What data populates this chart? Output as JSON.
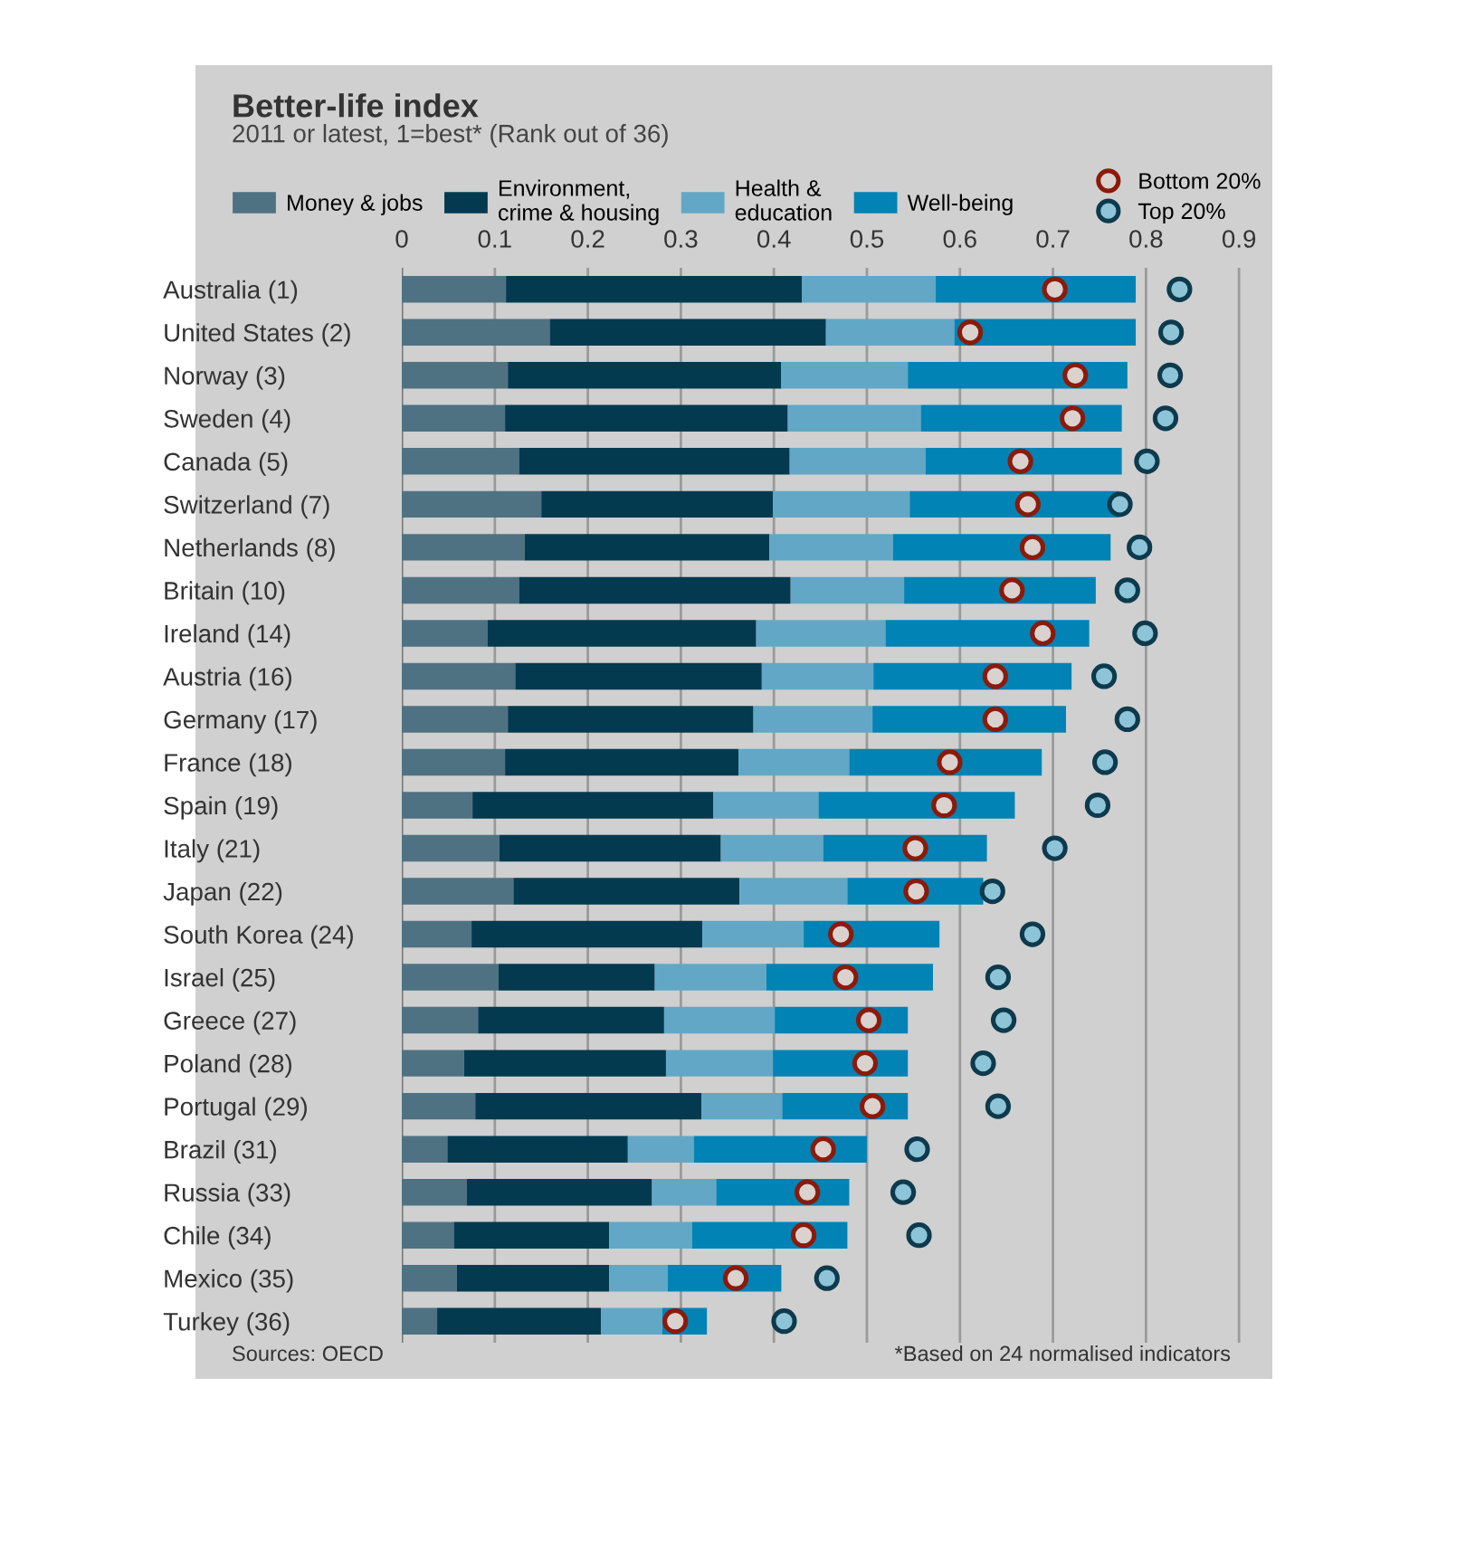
{
  "chart_data": {
    "type": "bar",
    "orientation": "horizontal",
    "stacked": true,
    "title": "Better-life index",
    "subtitle": "2011 or latest, 1=best* (Rank out of 36)",
    "categories": [
      "Australia (1)",
      "United States (2)",
      "Norway (3)",
      "Sweden (4)",
      "Canada (5)",
      "Switzerland (7)",
      "Netherlands (8)",
      "Britain (10)",
      "Ireland (14)",
      "Austria (16)",
      "Germany (17)",
      "France (18)",
      "Spain (19)",
      "Italy (21)",
      "Japan (22)",
      "South Korea (24)",
      "Israel (25)",
      "Greece (27)",
      "Poland (28)",
      "Portugal (29)",
      "Brazil (31)",
      "Russia (33)",
      "Chile (34)",
      "Mexico (35)",
      "Turkey (36)"
    ],
    "series": [
      {
        "name": "Money & jobs",
        "color": "#4f7282",
        "values": [
          0.112,
          0.159,
          0.114,
          0.111,
          0.126,
          0.15,
          0.132,
          0.126,
          0.092,
          0.122,
          0.114,
          0.111,
          0.076,
          0.105,
          0.12,
          0.075,
          0.104,
          0.082,
          0.067,
          0.079,
          0.049,
          0.07,
          0.056,
          0.059,
          0.038
        ]
      },
      {
        "name": "Environment,\ncrime & housing",
        "color": "#033a50",
        "values": [
          0.318,
          0.297,
          0.294,
          0.304,
          0.291,
          0.249,
          0.263,
          0.292,
          0.289,
          0.265,
          0.264,
          0.251,
          0.259,
          0.238,
          0.243,
          0.248,
          0.168,
          0.2,
          0.217,
          0.243,
          0.194,
          0.199,
          0.167,
          0.164,
          0.176
        ]
      },
      {
        "name": "Health &\neducation",
        "color": "#62a8c6",
        "values": [
          0.144,
          0.138,
          0.136,
          0.143,
          0.146,
          0.147,
          0.133,
          0.122,
          0.139,
          0.12,
          0.128,
          0.119,
          0.113,
          0.11,
          0.116,
          0.109,
          0.12,
          0.119,
          0.115,
          0.087,
          0.071,
          0.069,
          0.089,
          0.063,
          0.066
        ]
      },
      {
        "name": "Well-being",
        "color": "#0283b5",
        "values": [
          0.215,
          0.195,
          0.236,
          0.216,
          0.211,
          0.225,
          0.234,
          0.206,
          0.219,
          0.213,
          0.208,
          0.207,
          0.211,
          0.176,
          0.146,
          0.146,
          0.179,
          0.143,
          0.145,
          0.135,
          0.186,
          0.143,
          0.167,
          0.122,
          0.048
        ]
      },
      {
        "name": "Bottom 20%",
        "type": "scatter",
        "color": "#8b1a0a",
        "values": [
          0.702,
          0.611,
          0.724,
          0.721,
          0.665,
          0.673,
          0.678,
          0.656,
          0.689,
          0.638,
          0.638,
          0.589,
          0.583,
          0.552,
          0.553,
          0.472,
          0.477,
          0.502,
          0.498,
          0.506,
          0.453,
          0.436,
          0.432,
          0.359,
          0.294
        ]
      },
      {
        "name": "Top 20%",
        "type": "scatter",
        "color": "#0d3a4c",
        "values": [
          0.836,
          0.827,
          0.826,
          0.821,
          0.801,
          0.772,
          0.793,
          0.78,
          0.799,
          0.755,
          0.78,
          0.756,
          0.748,
          0.702,
          0.635,
          0.678,
          0.641,
          0.647,
          0.625,
          0.641,
          0.554,
          0.539,
          0.556,
          0.457,
          0.411
        ]
      }
    ],
    "xlim": [
      0,
      0.93
    ],
    "xticks": [
      0,
      0.1,
      0.2,
      0.3,
      0.4,
      0.5,
      0.6,
      0.7,
      0.8,
      0.9
    ],
    "grid": "x",
    "legend": "top",
    "marker": "circle",
    "annotations": [
      "Sources: OECD",
      "*Based on 24 normalised indicators"
    ]
  }
}
